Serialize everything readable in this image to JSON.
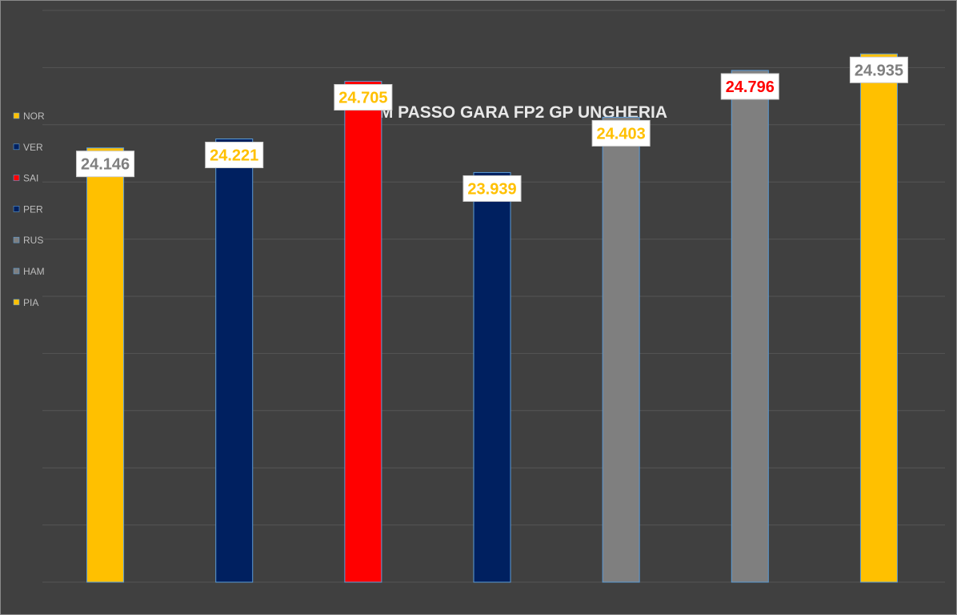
{
  "chart_data": {
    "type": "bar",
    "title": "SIM PASSO GARA FP2 GP UNGHERIA",
    "xlabel": "",
    "ylabel": "",
    "categories": [
      "NOR",
      "VER",
      "SAI",
      "PER",
      "RUS",
      "HAM",
      "PIA"
    ],
    "values": [
      24.146,
      24.221,
      24.705,
      23.939,
      24.403,
      24.796,
      24.935
    ],
    "value_labels": [
      "24.146",
      "24.221",
      "24.705",
      "23.939",
      "24.403",
      "24.796",
      "24.935"
    ],
    "bar_colors": [
      "#ffc000",
      "#002060",
      "#ff0000",
      "#002060",
      "#7f7f7f",
      "#7f7f7f",
      "#ffc000"
    ],
    "label_colors": [
      "#7f7f7f",
      "#ffc000",
      "#ffc000",
      "#ffc000",
      "#ffc000",
      "#ff0000",
      "#7f7f7f"
    ],
    "ylim": [
      20.5,
      25.3
    ],
    "gridlines": true,
    "legend_position": "left",
    "axis_tick_labels_visible": false
  },
  "colors": {
    "background": "#404040",
    "gridline": "#555555",
    "title": "#e8e8e8",
    "legend_text": "#bdbdbd",
    "label_box": "#ffffff"
  }
}
